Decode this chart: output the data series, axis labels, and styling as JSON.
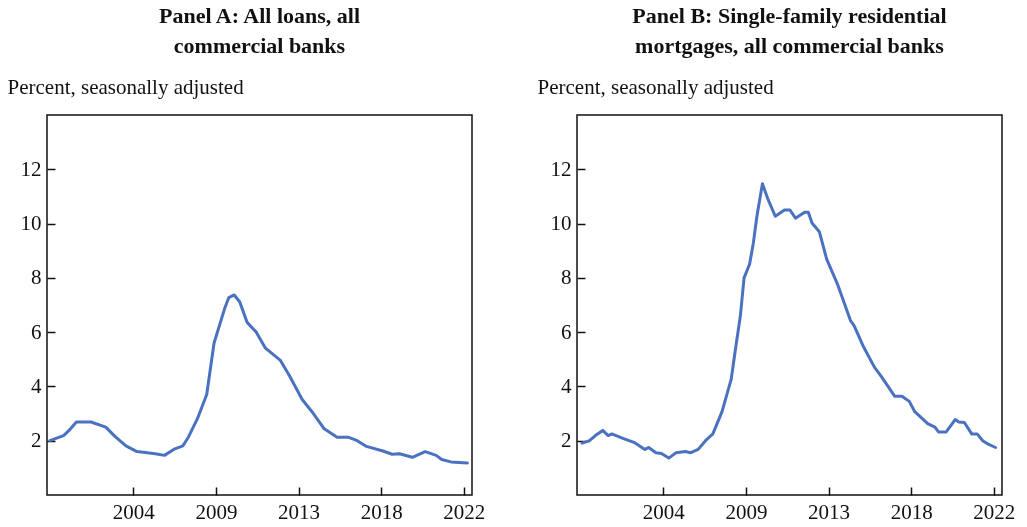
{
  "chart_data": [
    {
      "type": "line",
      "title": "Panel A: All loans, all commercial banks",
      "ylabel": "Percent, seasonally adjusted",
      "xlim": [
        1999.3,
        2022.45
      ],
      "xticks": [
        {
          "value": 2004,
          "label": "2004"
        },
        {
          "value": 2008.5,
          "label": "2009"
        },
        {
          "value": 2013,
          "label": "2013"
        },
        {
          "value": 2017.5,
          "label": "2018"
        },
        {
          "value": 2022,
          "label": "2022"
        }
      ],
      "ylim": [
        0,
        14
      ],
      "yticks": [
        2,
        4,
        6,
        8,
        10,
        12
      ],
      "grid": false,
      "series": [
        {
          "color": "#4a72c0",
          "x": [
            1999.46,
            2000.2,
            2000.5,
            2000.9,
            2001.7,
            2002.5,
            2003.0,
            2003.6,
            2004.2,
            2005.2,
            2005.7,
            2006.2,
            2006.7,
            2007.0,
            2007.5,
            2008.0,
            2008.4,
            2009.0,
            2009.2,
            2009.5,
            2009.8,
            2010.2,
            2010.7,
            2011.2,
            2012.0,
            2012.5,
            2013.2,
            2013.8,
            2014.4,
            2015.1,
            2015.7,
            2016.2,
            2016.7,
            2017.6,
            2018.1,
            2018.5,
            2019.2,
            2019.9,
            2020.5,
            2020.8,
            2021.3,
            2022.2
          ],
          "values": [
            2.0,
            2.19,
            2.38,
            2.69,
            2.69,
            2.5,
            2.16,
            1.81,
            1.6,
            1.52,
            1.46,
            1.68,
            1.81,
            2.13,
            2.82,
            3.7,
            5.6,
            6.92,
            7.27,
            7.37,
            7.11,
            6.36,
            6.0,
            5.41,
            4.97,
            4.4,
            3.52,
            3.01,
            2.44,
            2.13,
            2.13,
            2.0,
            1.79,
            1.62,
            1.5,
            1.52,
            1.39,
            1.6,
            1.46,
            1.31,
            1.22,
            1.18
          ]
        }
      ]
    },
    {
      "type": "line",
      "title": "Panel B: Single-family residential mortgages, all commercial banks",
      "ylabel": "Percent, seasonally adjusted",
      "xlim": [
        1999.3,
        2022.45
      ],
      "xticks": [
        {
          "value": 2004,
          "label": "2004"
        },
        {
          "value": 2008.5,
          "label": "2009"
        },
        {
          "value": 2013,
          "label": "2013"
        },
        {
          "value": 2017.5,
          "label": "2018"
        },
        {
          "value": 2022,
          "label": "2022"
        }
      ],
      "ylim": [
        0,
        14
      ],
      "yticks": [
        2,
        4,
        6,
        8,
        10,
        12
      ],
      "grid": false,
      "series": [
        {
          "color": "#4a72c0",
          "x": [
            1999.57,
            1999.98,
            2000.3,
            2000.7,
            2001.0,
            2001.2,
            2001.8,
            2002.4,
            2003.0,
            2003.2,
            2003.6,
            2003.9,
            2004.3,
            2004.7,
            2005.2,
            2005.5,
            2005.9,
            2006.3,
            2006.7,
            2007.2,
            2007.7,
            2007.9,
            2008.2,
            2008.4,
            2008.7,
            2008.9,
            2009.1,
            2009.4,
            2009.7,
            2010.1,
            2010.6,
            2010.9,
            2011.2,
            2011.7,
            2011.9,
            2012.1,
            2012.5,
            2012.9,
            2013.5,
            2013.9,
            2014.2,
            2014.4,
            2014.9,
            2015.5,
            2015.9,
            2016.6,
            2017.0,
            2017.4,
            2017.7,
            2018.4,
            2018.8,
            2019.0,
            2019.4,
            2019.9,
            2020.1,
            2020.4,
            2020.8,
            2021.1,
            2021.4,
            2021.7,
            2022.1
          ],
          "values": [
            1.91,
            2.0,
            2.19,
            2.38,
            2.19,
            2.25,
            2.09,
            1.94,
            1.68,
            1.75,
            1.56,
            1.53,
            1.36,
            1.56,
            1.6,
            1.56,
            1.68,
            2.0,
            2.25,
            3.07,
            4.27,
            5.22,
            6.61,
            8.0,
            8.5,
            9.26,
            10.27,
            11.47,
            10.9,
            10.27,
            10.5,
            10.5,
            10.2,
            10.42,
            10.42,
            10.02,
            9.7,
            8.69,
            7.75,
            6.99,
            6.42,
            6.23,
            5.47,
            4.71,
            4.34,
            3.64,
            3.64,
            3.45,
            3.07,
            2.63,
            2.5,
            2.32,
            2.32,
            2.78,
            2.69,
            2.67,
            2.25,
            2.25,
            2.0,
            1.87,
            1.75
          ]
        }
      ]
    }
  ]
}
